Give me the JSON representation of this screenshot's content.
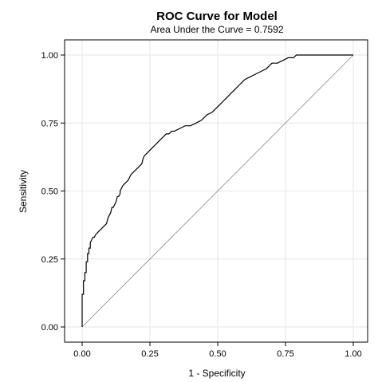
{
  "chart_data": {
    "type": "line",
    "title": "ROC Curve for Model",
    "subtitle": "Area Under the Curve = 0.7592",
    "xlabel": "1 - Specificity",
    "ylabel": "Sensitivity",
    "xlim": [
      0,
      1
    ],
    "ylim": [
      0,
      1
    ],
    "x_ticks": [
      "0.00",
      "0.25",
      "0.50",
      "0.75",
      "1.00"
    ],
    "y_ticks": [
      "0.00",
      "0.25",
      "0.50",
      "0.75",
      "1.00"
    ],
    "grid": true,
    "reference_line": {
      "x": [
        0,
        1
      ],
      "y": [
        0,
        1
      ]
    },
    "series": [
      {
        "x": [
          0.0,
          0.0,
          0.005,
          0.005,
          0.01,
          0.01,
          0.015,
          0.015,
          0.02,
          0.02,
          0.025,
          0.025,
          0.03,
          0.03,
          0.035,
          0.04,
          0.045,
          0.05,
          0.06,
          0.07,
          0.08,
          0.09,
          0.095,
          0.1,
          0.105,
          0.11,
          0.115,
          0.12,
          0.125,
          0.13,
          0.135,
          0.14,
          0.14,
          0.145,
          0.15,
          0.16,
          0.17,
          0.175,
          0.18,
          0.18,
          0.19,
          0.2,
          0.21,
          0.22,
          0.225,
          0.23,
          0.24,
          0.25,
          0.26,
          0.27,
          0.28,
          0.29,
          0.3,
          0.31,
          0.32,
          0.33,
          0.33,
          0.34,
          0.36,
          0.38,
          0.4,
          0.42,
          0.44,
          0.46,
          0.48,
          0.49,
          0.5,
          0.51,
          0.52,
          0.53,
          0.54,
          0.55,
          0.56,
          0.57,
          0.58,
          0.59,
          0.6,
          0.62,
          0.64,
          0.66,
          0.68,
          0.69,
          0.7,
          0.72,
          0.74,
          0.76,
          0.78,
          0.79,
          0.8,
          0.81,
          0.82,
          0.84,
          1.0
        ],
        "y": [
          0.0,
          0.12,
          0.12,
          0.17,
          0.17,
          0.2,
          0.2,
          0.24,
          0.24,
          0.27,
          0.27,
          0.29,
          0.29,
          0.31,
          0.32,
          0.33,
          0.33,
          0.34,
          0.35,
          0.36,
          0.37,
          0.38,
          0.4,
          0.41,
          0.42,
          0.44,
          0.44,
          0.45,
          0.46,
          0.48,
          0.48,
          0.49,
          0.5,
          0.51,
          0.52,
          0.53,
          0.54,
          0.55,
          0.56,
          0.56,
          0.57,
          0.58,
          0.59,
          0.6,
          0.62,
          0.63,
          0.64,
          0.65,
          0.66,
          0.67,
          0.68,
          0.69,
          0.7,
          0.71,
          0.71,
          0.72,
          0.72,
          0.72,
          0.73,
          0.74,
          0.74,
          0.75,
          0.76,
          0.78,
          0.79,
          0.8,
          0.81,
          0.82,
          0.83,
          0.84,
          0.85,
          0.86,
          0.87,
          0.88,
          0.89,
          0.9,
          0.91,
          0.92,
          0.93,
          0.94,
          0.95,
          0.96,
          0.97,
          0.97,
          0.98,
          0.99,
          0.99,
          1.0,
          1.0,
          1.0,
          1.0,
          1.0,
          1.0
        ]
      }
    ]
  }
}
